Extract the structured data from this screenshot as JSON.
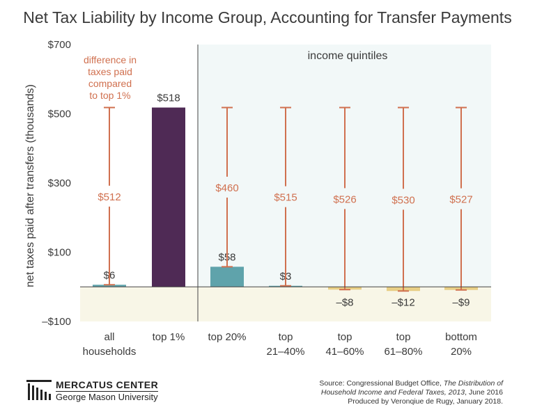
{
  "chart_data": {
    "type": "bar",
    "title": "Net Tax Liability by Income Group, Accounting for Transfer Payments",
    "ylabel": "net taxes paid after transfers (thousands)",
    "ylim": [
      -100,
      700
    ],
    "yticks": [
      -100,
      100,
      300,
      500,
      700
    ],
    "ytick_labels": [
      "–$100",
      "$100",
      "$300",
      "$500",
      "$700"
    ],
    "categories": [
      {
        "line1": "all",
        "line2": "households"
      },
      {
        "line1": "top 1%",
        "line2": ""
      },
      {
        "line1": "top 20%",
        "line2": ""
      },
      {
        "line1": "top",
        "line2": "21–40%"
      },
      {
        "line1": "top",
        "line2": "41–60%"
      },
      {
        "line1": "top",
        "line2": "61–80%"
      },
      {
        "line1": "bottom",
        "line2": "20%"
      }
    ],
    "values": [
      6,
      518,
      58,
      3,
      -8,
      -12,
      -9
    ],
    "value_labels": [
      "$6",
      "$518",
      "$58",
      "$3",
      "–$8",
      "–$12",
      "–$9"
    ],
    "difference_to_top1": [
      512,
      null,
      460,
      515,
      526,
      530,
      527
    ],
    "difference_labels": [
      "$512",
      "",
      "$460",
      "$515",
      "$526",
      "$530",
      "$527"
    ],
    "annotation_lines": [
      "difference in",
      "taxes paid",
      "compared",
      "to top 1%"
    ],
    "quintile_label": "income quintiles",
    "colors": {
      "top1": "#4f2a55",
      "positive": "#5fa3ab",
      "negative": "#e8cf86",
      "difference": "#d0704f",
      "quintile_bg": "#f2f8f8",
      "negative_bg": "#f8f6e7"
    }
  },
  "footer": {
    "logo_name": "MERCATUS CENTER",
    "logo_sub": "George Mason University",
    "source_prefix": "Source: Congressional Budget Office, ",
    "source_title_1": "The Distribution of",
    "source_title_2": "Household Income and Federal Taxes, 2013",
    "source_suffix": ", June 2016",
    "produced": "Produced by Veronqiue de Rugy, January 2018."
  }
}
